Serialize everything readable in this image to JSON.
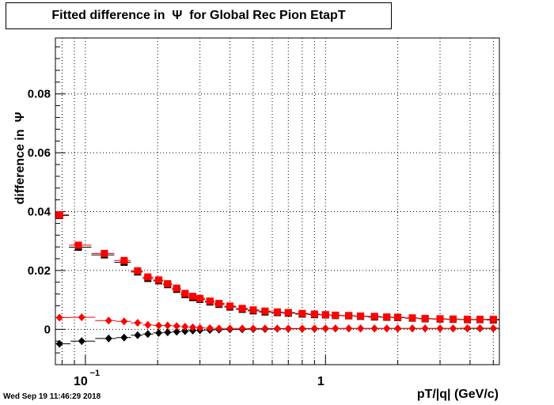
{
  "title": "Fitted difference in  Ψ  for Global Rec Pion EtapT",
  "timestamp": "Wed Sep 19 11:46:29 2018",
  "chart_data": {
    "type": "scatter",
    "title": "Fitted difference in  Ψ  for Global Rec Pion EtapT",
    "xlabel": "pT/|q| (GeV/c)",
    "ylabel": "difference in  Ψ",
    "x_scale": "log",
    "xlim": [
      0.075,
      5.3
    ],
    "ylim": [
      -0.012,
      0.099
    ],
    "grid": true,
    "x_ticks": [
      {
        "value": 0.1,
        "base": "10",
        "exp": "−1"
      },
      {
        "value": 1,
        "base": "1",
        "exp": ""
      }
    ],
    "y_ticks": [
      {
        "value": 0,
        "label": "0"
      },
      {
        "value": 0.02,
        "label": "0.02"
      },
      {
        "value": 0.04,
        "label": "0.04"
      },
      {
        "value": 0.06,
        "label": "0.06"
      },
      {
        "value": 0.08,
        "label": "0.08"
      }
    ],
    "series": [
      {
        "color": "#000000",
        "marker": "square",
        "x": [
          0.078,
          0.0935,
          0.12,
          0.145,
          0.165,
          0.182,
          0.202,
          0.22,
          0.24,
          0.26,
          0.28,
          0.3,
          0.33,
          0.36,
          0.4,
          0.45,
          0.5,
          0.56,
          0.63,
          0.7,
          0.8,
          0.9,
          1.0,
          1.1,
          1.25,
          1.4,
          1.6,
          1.8,
          2.0,
          2.3,
          2.6,
          3.0,
          3.4,
          3.9,
          4.4,
          5.0
        ],
        "y": [
          0.0387,
          0.0279,
          0.0253,
          0.0228,
          0.0195,
          0.0173,
          0.0165,
          0.0152,
          0.0136,
          0.0118,
          0.0108,
          0.0102,
          0.0093,
          0.0085,
          0.0076,
          0.0068,
          0.0063,
          0.0059,
          0.0057,
          0.0055,
          0.0052,
          0.005,
          0.0049,
          0.0047,
          0.0046,
          0.0044,
          0.0042,
          0.0041,
          0.004,
          0.0038,
          0.0036,
          0.0035,
          0.0034,
          0.0033,
          0.0033,
          0.0032
        ]
      },
      {
        "color": "#ff0000",
        "marker": "square",
        "x": [
          0.078,
          0.0935,
          0.12,
          0.145,
          0.165,
          0.182,
          0.202,
          0.22,
          0.24,
          0.26,
          0.28,
          0.3,
          0.33,
          0.36,
          0.4,
          0.45,
          0.5,
          0.56,
          0.63,
          0.7,
          0.8,
          0.9,
          1.0,
          1.1,
          1.25,
          1.4,
          1.6,
          1.8,
          2.0,
          2.3,
          2.6,
          3.0,
          3.4,
          3.9,
          4.4,
          5.0
        ],
        "y": [
          0.0389,
          0.0286,
          0.0258,
          0.0234,
          0.0199,
          0.0178,
          0.0168,
          0.0155,
          0.014,
          0.0122,
          0.0112,
          0.0105,
          0.0096,
          0.0088,
          0.0079,
          0.0071,
          0.0066,
          0.0062,
          0.0059,
          0.0057,
          0.0054,
          0.0052,
          0.005,
          0.0048,
          0.0047,
          0.0045,
          0.0044,
          0.0042,
          0.0041,
          0.0039,
          0.0037,
          0.0036,
          0.0035,
          0.0034,
          0.0034,
          0.0034
        ]
      },
      {
        "color": "#000000",
        "marker": "diamond",
        "x": [
          0.078,
          0.0965,
          0.125,
          0.145,
          0.165,
          0.182,
          0.202,
          0.22,
          0.24,
          0.26,
          0.28,
          0.3,
          0.33,
          0.36,
          0.4,
          0.45,
          0.5,
          0.56,
          0.63,
          0.7,
          0.8,
          0.9,
          1.0,
          1.1,
          1.25,
          1.4,
          1.6,
          1.8,
          2.0,
          2.3,
          2.6,
          3.0,
          3.4,
          3.9,
          4.4,
          5.0
        ],
        "y": [
          -0.0049,
          -0.004,
          -0.0031,
          -0.0028,
          -0.002,
          -0.0016,
          -0.0012,
          -0.001,
          -0.0008,
          -0.0006,
          -0.0004,
          -0.0003,
          -0.0002,
          -0.0001,
          0.0,
          0.0,
          0.0001,
          0.0001,
          0.0002,
          0.0002,
          0.0002,
          0.0002,
          0.0003,
          0.0003,
          0.0003,
          0.0003,
          0.0003,
          0.0003,
          0.0003,
          0.0003,
          0.0003,
          0.0003,
          0.0003,
          0.0003,
          0.0003,
          0.0003
        ]
      },
      {
        "color": "#ff0000",
        "marker": "diamond",
        "x": [
          0.078,
          0.0965,
          0.125,
          0.145,
          0.165,
          0.182,
          0.202,
          0.22,
          0.24,
          0.26,
          0.28,
          0.3,
          0.33,
          0.36,
          0.4,
          0.45,
          0.5,
          0.56,
          0.63,
          0.7,
          0.8,
          0.9,
          1.0,
          1.1,
          1.25,
          1.4,
          1.6,
          1.8,
          2.0,
          2.3,
          2.6,
          3.0,
          3.4,
          3.9,
          4.4,
          5.0
        ],
        "y": [
          0.004,
          0.0041,
          0.003,
          0.0027,
          0.0022,
          0.0015,
          0.0013,
          0.0013,
          0.0011,
          0.0009,
          0.0007,
          0.0005,
          0.0004,
          0.0003,
          0.0003,
          0.0003,
          0.0003,
          0.0003,
          0.0003,
          0.0003,
          0.0003,
          0.0003,
          0.0003,
          0.0003,
          0.0003,
          0.0003,
          0.0003,
          0.0003,
          0.0003,
          0.0003,
          0.0003,
          0.0003,
          0.0003,
          0.0004,
          0.0004,
          0.0004
        ]
      }
    ]
  }
}
